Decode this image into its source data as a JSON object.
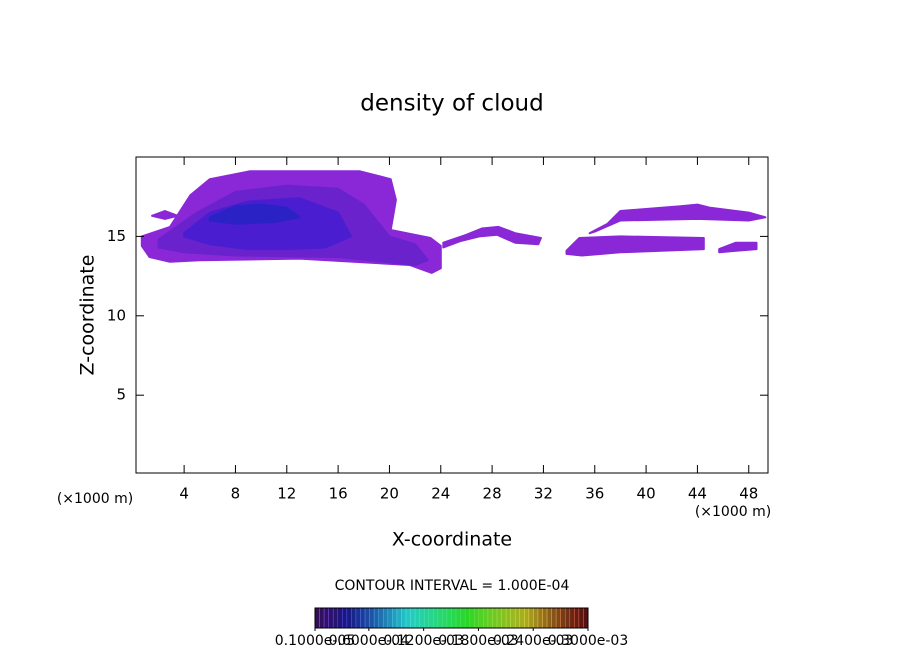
{
  "chart_data": {
    "type": "contour",
    "title": "density of cloud",
    "x_label": "X-coordinate",
    "y_label": "Z-coordinate",
    "x_unit": "(×1000 m)",
    "y_unit": "(×1000 m)",
    "annotation": "CONTOUR INTERVAL = 1.000E-04",
    "xlim": [
      0.25,
      49.5
    ],
    "ylim": [
      0.1,
      20
    ],
    "xticks": [
      4,
      8,
      12,
      16,
      20,
      24,
      28,
      32,
      36,
      40,
      44,
      48
    ],
    "yticks": [
      5,
      10,
      15
    ],
    "contours": [
      {
        "color": "#8a28d8",
        "x": [
          0.7,
          2.9,
          4.5,
          6.0,
          9.1,
          17.7,
          20.1,
          20.5,
          20.1,
          23.2,
          24.0,
          24.0,
          23.3,
          21.6,
          13.0,
          5.2,
          2.9,
          1.3,
          0.7
        ],
        "z": [
          15.0,
          15.6,
          17.6,
          18.6,
          19.1,
          19.1,
          18.6,
          17.3,
          15.4,
          14.9,
          14.4,
          13.0,
          12.7,
          13.2,
          13.6,
          13.5,
          13.4,
          13.7,
          14.4
        ]
      },
      {
        "color": "#8a28d8",
        "x": [
          1.5,
          2.5,
          3.5,
          2.5
        ],
        "z": [
          16.3,
          16.6,
          16.3,
          16.1
        ]
      },
      {
        "color": "#8a28d8",
        "x": [
          24.2,
          26,
          27.2,
          28.5,
          29.8,
          31.8,
          31.6,
          29.8,
          28.4,
          27,
          25.5,
          24.2
        ],
        "z": [
          14.6,
          15.1,
          15.5,
          15.6,
          15.2,
          14.9,
          14.5,
          14.6,
          15.1,
          15.0,
          14.7,
          14.3
        ]
      },
      {
        "color": "#8a28d8",
        "x": [
          35.6,
          37,
          38,
          42.7,
          44,
          45,
          48,
          49.3,
          48,
          44,
          38,
          36
        ],
        "z": [
          15.2,
          15.8,
          16.6,
          16.9,
          17.0,
          16.8,
          16.5,
          16.2,
          16.0,
          16.1,
          16.0,
          15.3
        ]
      },
      {
        "color": "#8a28d8",
        "x": [
          33.8,
          34.8,
          38,
          44.5,
          44.5,
          38,
          35,
          33.8
        ],
        "z": [
          14.1,
          14.9,
          15.0,
          14.9,
          14.2,
          14.0,
          13.8,
          13.9
        ]
      },
      {
        "color": "#8a28d8",
        "x": [
          45.7,
          47,
          48.6,
          48.6,
          47,
          45.7
        ],
        "z": [
          14.2,
          14.6,
          14.6,
          14.2,
          14.1,
          14.0
        ]
      },
      {
        "color": "#6a22cc",
        "x": [
          2,
          5,
          8,
          12,
          16,
          18,
          20,
          22,
          23,
          22,
          16,
          8,
          4,
          2
        ],
        "z": [
          14.8,
          16.5,
          17.8,
          18.2,
          18.0,
          17,
          15,
          14.5,
          13.5,
          13.2,
          13.7,
          13.8,
          14,
          14.3
        ]
      },
      {
        "color": "#4a1ed0",
        "x": [
          4,
          6,
          9,
          13,
          16,
          17,
          15,
          12,
          9,
          6,
          4
        ],
        "z": [
          15.2,
          16.5,
          17.2,
          17.4,
          16.5,
          15,
          14.3,
          14.2,
          14.2,
          14.5,
          15
        ]
      },
      {
        "color": "#2a22c4",
        "x": [
          6,
          8,
          10,
          12,
          13,
          11,
          8,
          6
        ],
        "z": [
          16.2,
          16.9,
          17.0,
          16.8,
          16.2,
          15.9,
          15.8,
          16.0
        ]
      }
    ],
    "colorbar_ticks": [
      {
        "value": 1e-06,
        "label": "0.1000e-05"
      },
      {
        "value": 6e-05,
        "label": "0.6000e-04"
      },
      {
        "value": 0.00012,
        "label": "0.1200e-03"
      },
      {
        "value": 0.00018,
        "label": "0.1800e-03"
      },
      {
        "value": 0.00024,
        "label": "0.2400e-03"
      },
      {
        "value": 0.0003,
        "label": "0.3000e-03"
      }
    ]
  }
}
